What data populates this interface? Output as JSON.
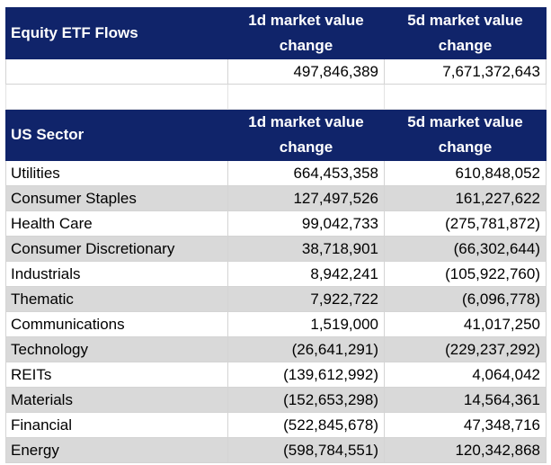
{
  "equity": {
    "header": {
      "label": "Equity ETF Flows",
      "col1": [
        "1d market value",
        "change"
      ],
      "col2": [
        "5d market value",
        "change"
      ]
    },
    "total": {
      "d1": "497,846,389",
      "d5": "7,671,372,643"
    }
  },
  "sector": {
    "header": {
      "label": "US Sector",
      "col1": [
        "1d market value",
        "change"
      ],
      "col2": [
        "5d market value",
        "change"
      ]
    },
    "rows": [
      {
        "name": "Utilities",
        "d1": "664,453,358",
        "d5": "610,848,052"
      },
      {
        "name": "Consumer Staples",
        "d1": "127,497,526",
        "d5": "161,227,622"
      },
      {
        "name": "Health Care",
        "d1": "99,042,733",
        "d5": "(275,781,872)"
      },
      {
        "name": "Consumer Discretionary",
        "d1": "38,718,901",
        "d5": "(66,302,644)"
      },
      {
        "name": "Industrials",
        "d1": "8,942,241",
        "d5": "(105,922,760)"
      },
      {
        "name": "Thematic",
        "d1": "7,922,722",
        "d5": "(6,096,778)"
      },
      {
        "name": "Communications",
        "d1": "1,519,000",
        "d5": "41,017,250"
      },
      {
        "name": "Technology",
        "d1": "(26,641,291)",
        "d5": "(229,237,292)"
      },
      {
        "name": "REITs",
        "d1": "(139,612,992)",
        "d5": "4,064,042"
      },
      {
        "name": "Materials",
        "d1": "(152,653,298)",
        "d5": "14,564,361"
      },
      {
        "name": "Financial",
        "d1": "(522,845,678)",
        "d5": "47,348,716"
      },
      {
        "name": "Energy",
        "d1": "(598,784,551)",
        "d5": "120,342,868"
      }
    ]
  },
  "colors": {
    "header_bg": "#10246a",
    "header_text": "#ffffff",
    "stripe": "#d9d9d9"
  }
}
